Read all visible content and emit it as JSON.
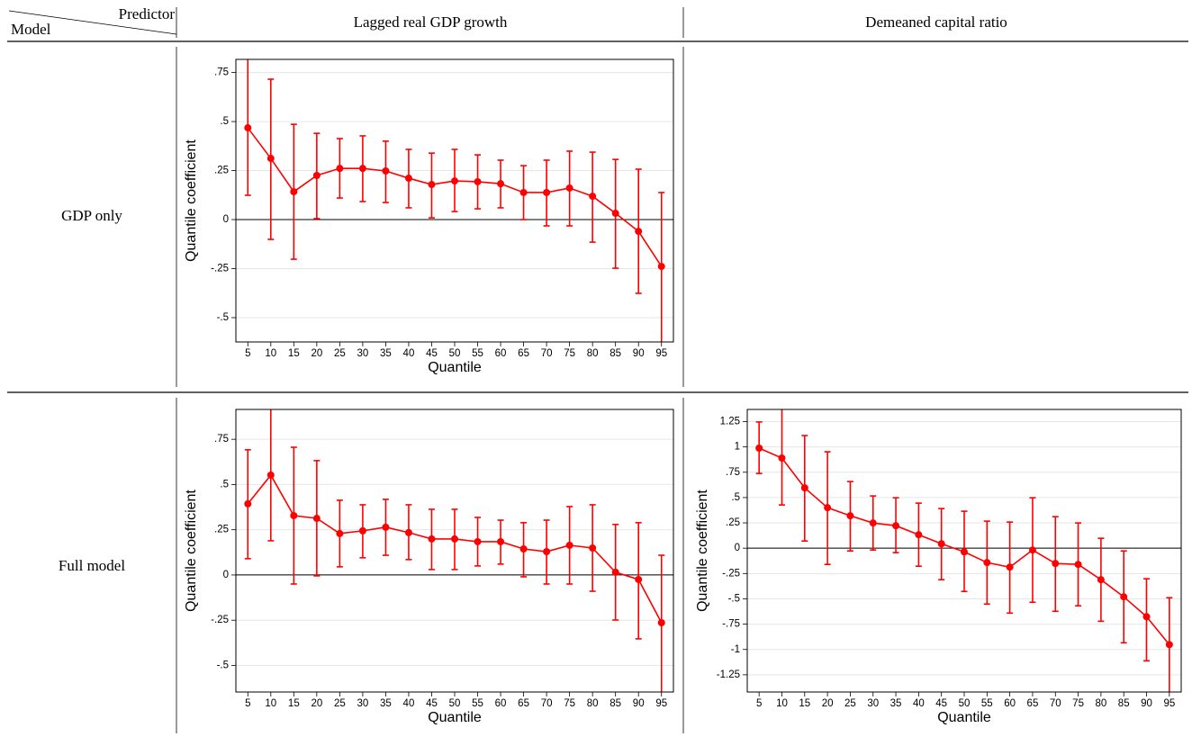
{
  "header": {
    "corner_top": "Predictor",
    "corner_bottom": "Model",
    "columns": [
      "Lagged real GDP growth",
      "Demeaned capital ratio"
    ]
  },
  "rows": [
    {
      "label": "GDP only"
    },
    {
      "label": "Full model"
    }
  ],
  "chart_data": [
    {
      "type": "line",
      "xlabel": "Quantile",
      "ylabel": "Quantile coefficient",
      "color": "#ff0000",
      "grid": true,
      "x": [
        5,
        10,
        15,
        20,
        25,
        30,
        35,
        40,
        45,
        50,
        55,
        60,
        65,
        70,
        75,
        80,
        85,
        90,
        95
      ],
      "values": [
        0.468,
        0.312,
        0.142,
        0.225,
        0.261,
        0.261,
        0.248,
        0.211,
        0.179,
        0.197,
        0.193,
        0.183,
        0.138,
        0.138,
        0.161,
        0.119,
        0.032,
        -0.06,
        -0.239
      ],
      "lower": [
        0.124,
        -0.101,
        -0.202,
        0.005,
        0.11,
        0.092,
        0.087,
        0.06,
        0.009,
        0.041,
        0.055,
        0.06,
        0.0,
        -0.032,
        -0.032,
        -0.115,
        -0.248,
        -0.376,
        -0.65
      ],
      "upper": [
        0.83,
        0.716,
        0.486,
        0.44,
        0.413,
        0.427,
        0.4,
        0.358,
        0.339,
        0.358,
        0.33,
        0.303,
        0.275,
        0.303,
        0.349,
        0.344,
        0.307,
        0.257,
        0.138
      ],
      "xlim": [
        2.4,
        97.6
      ],
      "xticks": [
        5,
        10,
        15,
        20,
        25,
        30,
        35,
        40,
        45,
        50,
        55,
        60,
        65,
        70,
        75,
        80,
        85,
        90,
        95
      ],
      "ylim": [
        -0.624,
        0.817
      ],
      "yticks": [
        {
          "value": 0.75,
          "label": ".75"
        },
        {
          "value": 0.5,
          "label": ".5"
        },
        {
          "value": 0.25,
          "label": ".25"
        },
        0,
        {
          "value": -0.25,
          "label": "-.25"
        },
        {
          "value": -0.5,
          "label": "-.5"
        }
      ]
    },
    {
      "type": "line",
      "xlabel": "Quantile",
      "ylabel": "Quantile coefficient",
      "color": "#ff0000",
      "grid": true,
      "x": [
        5,
        10,
        15,
        20,
        25,
        30,
        35,
        40,
        45,
        50,
        55,
        60,
        65,
        70,
        75,
        80,
        85,
        90,
        95
      ],
      "values": [
        0.393,
        0.552,
        0.328,
        0.313,
        0.229,
        0.244,
        0.264,
        0.234,
        0.199,
        0.199,
        0.184,
        0.184,
        0.144,
        0.129,
        0.164,
        0.149,
        0.015,
        -0.025,
        -0.264
      ],
      "lower": [
        0.09,
        0.189,
        -0.05,
        -0.005,
        0.045,
        0.095,
        0.109,
        0.085,
        0.03,
        0.03,
        0.05,
        0.06,
        -0.01,
        -0.05,
        -0.05,
        -0.09,
        -0.249,
        -0.353,
        -0.66
      ],
      "upper": [
        0.692,
        0.92,
        0.706,
        0.632,
        0.413,
        0.388,
        0.418,
        0.388,
        0.363,
        0.363,
        0.318,
        0.303,
        0.289,
        0.303,
        0.378,
        0.388,
        0.279,
        0.289,
        0.109
      ],
      "xlim": [
        2.4,
        97.6
      ],
      "xticks": [
        5,
        10,
        15,
        20,
        25,
        30,
        35,
        40,
        45,
        50,
        55,
        60,
        65,
        70,
        75,
        80,
        85,
        90,
        95
      ],
      "ylim": [
        -0.647,
        0.915
      ],
      "yticks": [
        {
          "value": 0.75,
          "label": ".75"
        },
        {
          "value": 0.5,
          "label": ".5"
        },
        {
          "value": 0.25,
          "label": ".25"
        },
        0,
        {
          "value": -0.25,
          "label": "-.25"
        },
        {
          "value": -0.5,
          "label": "-.5"
        }
      ]
    },
    {
      "type": "line",
      "xlabel": "Quantile",
      "ylabel": "Quantile coefficient",
      "color": "#ff0000",
      "grid": true,
      "x": [
        5,
        10,
        15,
        20,
        25,
        30,
        35,
        40,
        45,
        50,
        55,
        60,
        65,
        70,
        75,
        80,
        85,
        90,
        95
      ],
      "values": [
        0.988,
        0.89,
        0.596,
        0.4,
        0.32,
        0.249,
        0.222,
        0.133,
        0.044,
        -0.036,
        -0.142,
        -0.187,
        -0.018,
        -0.151,
        -0.16,
        -0.311,
        -0.48,
        -0.676,
        -0.952
      ],
      "lower": [
        0.738,
        0.427,
        0.071,
        -0.16,
        -0.027,
        -0.018,
        -0.044,
        -0.178,
        -0.311,
        -0.427,
        -0.552,
        -0.641,
        -0.534,
        -0.623,
        -0.569,
        -0.721,
        -0.934,
        -1.112,
        -1.45
      ],
      "upper": [
        1.246,
        1.38,
        1.112,
        0.952,
        0.658,
        0.516,
        0.498,
        0.445,
        0.391,
        0.365,
        0.267,
        0.258,
        0.498,
        0.311,
        0.249,
        0.098,
        -0.027,
        -0.302,
        -0.489
      ],
      "xlim": [
        2.4,
        97.6
      ],
      "xticks": [
        5,
        10,
        15,
        20,
        25,
        30,
        35,
        40,
        45,
        50,
        55,
        60,
        65,
        70,
        75,
        80,
        85,
        90,
        95
      ],
      "ylim": [
        -1.42,
        1.37
      ],
      "yticks": [
        1.25,
        1,
        {
          "value": 0.75,
          "label": ".75"
        },
        {
          "value": 0.5,
          "label": ".5"
        },
        {
          "value": 0.25,
          "label": ".25"
        },
        0,
        {
          "value": -0.25,
          "label": "-.25"
        },
        {
          "value": -0.5,
          "label": "-.5"
        },
        {
          "value": -0.75,
          "label": "-.75"
        },
        -1,
        -1.25
      ]
    }
  ]
}
